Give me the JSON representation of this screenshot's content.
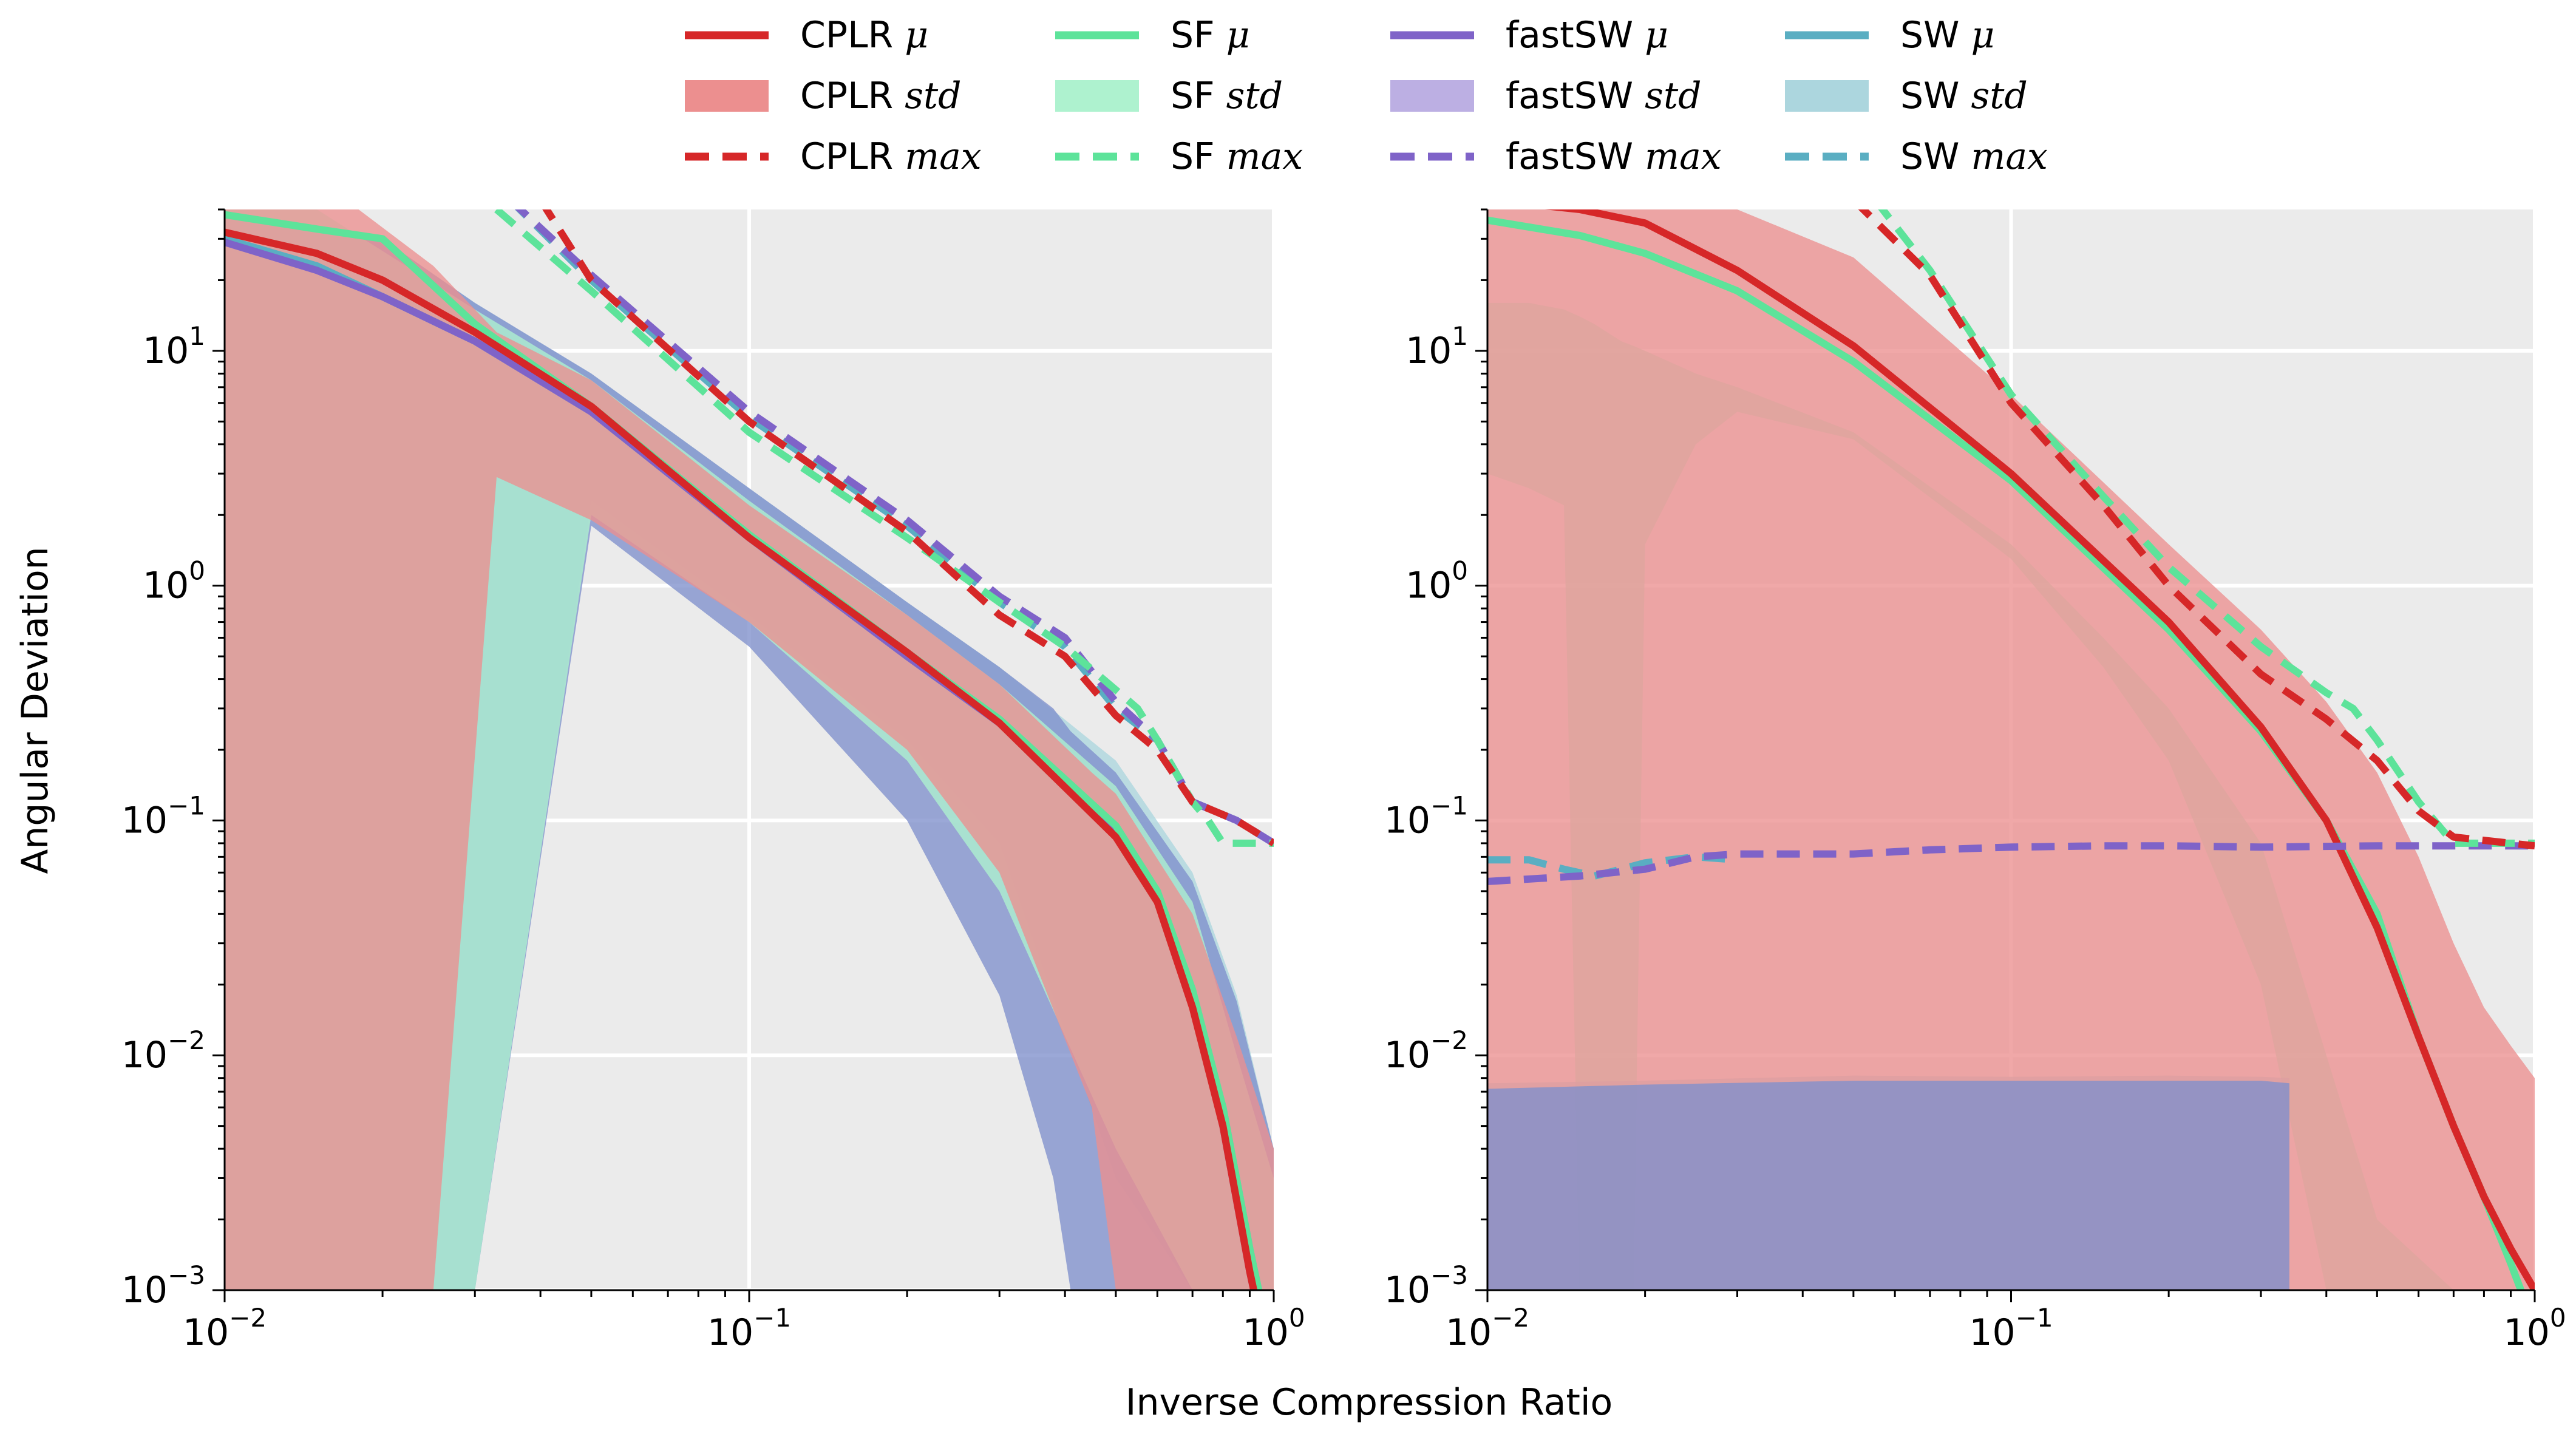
{
  "figure": {
    "ylabel": "Angular Deviation",
    "xlabel": "Inverse Compression Ratio"
  },
  "legend": {
    "position": "top-center",
    "entries": [
      {
        "method": "CPLR",
        "stat": "μ",
        "style": "line",
        "color": "#d62728"
      },
      {
        "method": "CPLR",
        "stat": "std",
        "style": "band",
        "color": "#ec8f8f"
      },
      {
        "method": "CPLR",
        "stat": "max",
        "style": "dashed",
        "color": "#d62728"
      },
      {
        "method": "SF",
        "stat": "μ",
        "style": "line",
        "color": "#5de39a"
      },
      {
        "method": "SF",
        "stat": "std",
        "style": "band",
        "color": "#aef2cf"
      },
      {
        "method": "SF",
        "stat": "max",
        "style": "dashed",
        "color": "#5de39a"
      },
      {
        "method": "fastSW",
        "stat": "μ",
        "style": "line",
        "color": "#7f63c8"
      },
      {
        "method": "fastSW",
        "stat": "std",
        "style": "band",
        "color": "#bcafe3"
      },
      {
        "method": "fastSW",
        "stat": "max",
        "style": "dashed",
        "color": "#7f63c8"
      },
      {
        "method": "SW",
        "stat": "μ",
        "style": "line",
        "color": "#5aaec2"
      },
      {
        "method": "SW",
        "stat": "std",
        "style": "band",
        "color": "#acd6de"
      },
      {
        "method": "SW",
        "stat": "max",
        "style": "dashed",
        "color": "#5aaec2"
      }
    ]
  },
  "chart_data": [
    {
      "type": "line",
      "panel": "left",
      "xscale": "log",
      "yscale": "log",
      "xlim": [
        0.01,
        1
      ],
      "ylim": [
        0.001,
        40
      ],
      "xticks": [
        {
          "value": 0.01,
          "base": "10",
          "exp": "−2"
        },
        {
          "value": 0.1,
          "base": "10",
          "exp": "−1"
        },
        {
          "value": 1,
          "base": "10",
          "exp": "0"
        }
      ],
      "yticks": [
        {
          "value": 0.001,
          "base": "10",
          "exp": "−3"
        },
        {
          "value": 0.01,
          "base": "10",
          "exp": "−2"
        },
        {
          "value": 0.1,
          "base": "10",
          "exp": "−1"
        },
        {
          "value": 1,
          "base": "10",
          "exp": "0"
        },
        {
          "value": 10,
          "base": "10",
          "exp": "1"
        }
      ],
      "grid": true,
      "series": [
        {
          "name": "SW std",
          "kind": "band",
          "color": "#acd6de",
          "x": [
            0.01,
            0.02,
            0.03,
            0.05,
            0.1,
            0.2,
            0.3,
            0.5,
            0.7,
            0.85,
            1.0
          ],
          "upper": [
            38,
            30,
            16,
            8,
            2.6,
            0.85,
            0.45,
            0.18,
            0.06,
            0.018,
            0.004
          ],
          "lower": [
            0.001,
            0.001,
            0.001,
            2.3,
            0.75,
            0.22,
            0.08,
            0.003,
            0.001,
            0.001,
            0.001
          ]
        },
        {
          "name": "fastSW std",
          "kind": "band",
          "color": "#7f8fcc",
          "x": [
            0.01,
            0.02,
            0.03,
            0.05,
            0.1,
            0.2,
            0.3,
            0.38,
            0.41,
            0.5,
            0.7,
            0.85,
            1.0
          ],
          "upper": [
            38,
            30,
            16,
            8,
            2.6,
            0.85,
            0.45,
            0.3,
            0.24,
            0.16,
            0.055,
            0.017,
            0.004
          ],
          "lower": [
            0.001,
            0.001,
            0.001,
            1.8,
            0.55,
            0.1,
            0.018,
            0.003,
            0.001,
            0.001,
            0.001,
            0.001,
            0.001
          ]
        },
        {
          "name": "SF std",
          "kind": "band",
          "color": "#aef2cf",
          "x": [
            0.01,
            0.015,
            0.03,
            0.05,
            0.1,
            0.2,
            0.3,
            0.5,
            0.7,
            0.85,
            1.0
          ],
          "upper": [
            40,
            40,
            15,
            7.5,
            2.3,
            0.75,
            0.38,
            0.14,
            0.045,
            0.01,
            0.003
          ],
          "lower": [
            0.001,
            0.001,
            0.001,
            2.0,
            0.7,
            0.18,
            0.05,
            0.004,
            0.001,
            0.001,
            0.001
          ]
        },
        {
          "name": "CPLR std",
          "kind": "band",
          "color": "#ec8f8f",
          "x": [
            0.01,
            0.015,
            0.018,
            0.025,
            0.033,
            0.05,
            0.1,
            0.2,
            0.3,
            0.45,
            0.5,
            0.7,
            0.85,
            1.0
          ],
          "upper": [
            40,
            40,
            40,
            23,
            12,
            7.5,
            2.2,
            0.75,
            0.38,
            0.16,
            0.13,
            0.04,
            0.012,
            0.004
          ],
          "lower": [
            0.001,
            0.001,
            0.001,
            0.001,
            2.9,
            1.9,
            0.7,
            0.2,
            0.06,
            0.006,
            0.001,
            0.001,
            0.001,
            0.001
          ]
        },
        {
          "name": "SW μ",
          "kind": "line",
          "color": "#5aaec2",
          "x": [
            0.01,
            0.015,
            0.02,
            0.03,
            0.05,
            0.1,
            0.2,
            0.3,
            0.5,
            0.6,
            0.7,
            0.8,
            0.9,
            1.0
          ],
          "y": [
            30,
            23,
            17,
            11,
            5.5,
            1.6,
            0.5,
            0.26,
            0.09,
            0.048,
            0.018,
            0.006,
            0.0015,
            0.0005
          ]
        },
        {
          "name": "fastSW μ",
          "kind": "line",
          "color": "#7f63c8",
          "x": [
            0.01,
            0.015,
            0.02,
            0.03,
            0.05,
            0.1,
            0.2,
            0.3,
            0.5,
            0.6,
            0.7,
            0.8,
            0.9,
            1.0
          ],
          "y": [
            29,
            22,
            17,
            11,
            5.5,
            1.6,
            0.5,
            0.26,
            0.09,
            0.048,
            0.017,
            0.005,
            0.0012,
            0.0004
          ]
        },
        {
          "name": "SF μ",
          "kind": "line",
          "color": "#5de39a",
          "x": [
            0.01,
            0.015,
            0.02,
            0.03,
            0.05,
            0.1,
            0.2,
            0.3,
            0.5,
            0.6,
            0.7,
            0.8,
            0.9,
            1.0
          ],
          "y": [
            38,
            33,
            30,
            13,
            5.8,
            1.65,
            0.52,
            0.27,
            0.095,
            0.05,
            0.019,
            0.006,
            0.0015,
            0.0005
          ]
        },
        {
          "name": "CPLR μ",
          "kind": "line",
          "color": "#d62728",
          "x": [
            0.01,
            0.015,
            0.02,
            0.03,
            0.05,
            0.1,
            0.2,
            0.3,
            0.5,
            0.6,
            0.7,
            0.8,
            0.9,
            1.0
          ],
          "y": [
            32,
            26,
            20,
            12,
            5.8,
            1.6,
            0.52,
            0.26,
            0.085,
            0.045,
            0.016,
            0.005,
            0.0012,
            0.0004
          ]
        },
        {
          "name": "SW max",
          "kind": "dashed",
          "color": "#5aaec2",
          "x": [
            0.035,
            0.05,
            0.1,
            0.2,
            0.3,
            0.4,
            0.5,
            0.6,
            0.7,
            0.85,
            1.0
          ],
          "y": [
            44,
            20,
            5.2,
            1.8,
            0.85,
            0.55,
            0.3,
            0.22,
            0.12,
            0.1,
            0.08
          ]
        },
        {
          "name": "fastSW max",
          "kind": "dashed",
          "color": "#7f63c8",
          "x": [
            0.035,
            0.05,
            0.1,
            0.2,
            0.3,
            0.4,
            0.5,
            0.6,
            0.7,
            0.85,
            1.0
          ],
          "y": [
            44,
            21,
            5.5,
            1.9,
            0.9,
            0.6,
            0.32,
            0.22,
            0.12,
            0.1,
            0.08
          ]
        },
        {
          "name": "SF max",
          "kind": "dashed",
          "color": "#5de39a",
          "x": [
            0.033,
            0.05,
            0.1,
            0.2,
            0.3,
            0.4,
            0.5,
            0.55,
            0.6,
            0.7,
            0.75,
            0.8,
            1.0
          ],
          "y": [
            40,
            18,
            4.5,
            1.6,
            0.85,
            0.55,
            0.36,
            0.3,
            0.22,
            0.12,
            0.1,
            0.08,
            0.08
          ]
        },
        {
          "name": "CPLR max",
          "kind": "dashed",
          "color": "#d62728",
          "x": [
            0.04,
            0.05,
            0.1,
            0.2,
            0.3,
            0.4,
            0.5,
            0.6,
            0.7,
            0.85,
            1.0
          ],
          "y": [
            44,
            20,
            5.0,
            1.7,
            0.75,
            0.5,
            0.28,
            0.2,
            0.12,
            0.1,
            0.08
          ]
        }
      ]
    },
    {
      "type": "line",
      "panel": "right",
      "xscale": "log",
      "yscale": "log",
      "xlim": [
        0.01,
        1
      ],
      "ylim": [
        0.001,
        40
      ],
      "xticks": [
        {
          "value": 0.01,
          "base": "10",
          "exp": "−2"
        },
        {
          "value": 0.1,
          "base": "10",
          "exp": "−1"
        },
        {
          "value": 1,
          "base": "10",
          "exp": "0"
        }
      ],
      "yticks": [
        {
          "value": 0.001,
          "base": "10",
          "exp": "−3"
        },
        {
          "value": 0.01,
          "base": "10",
          "exp": "−2"
        },
        {
          "value": 0.1,
          "base": "10",
          "exp": "−1"
        },
        {
          "value": 1,
          "base": "10",
          "exp": "0"
        },
        {
          "value": 10,
          "base": "10",
          "exp": "1"
        }
      ],
      "grid": true,
      "series": [
        {
          "name": "SF std",
          "kind": "band",
          "color": "#aef2cf",
          "x": [
            0.01,
            0.012,
            0.014,
            0.015,
            0.016,
            0.018,
            0.019,
            0.02,
            0.025,
            0.03,
            0.05,
            0.1,
            0.15,
            0.2,
            0.3,
            0.4,
            0.5,
            0.7,
            1.0
          ],
          "upper": [
            16,
            16,
            15,
            14,
            13,
            11,
            10.5,
            10,
            8,
            7,
            4.5,
            1.5,
            0.6,
            0.3,
            0.08,
            0.01,
            0.002,
            0.001,
            0.001
          ],
          "lower": [
            3,
            2.6,
            2.2,
            0.001,
            0.001,
            0.001,
            0.001,
            1.5,
            4,
            5.5,
            4.2,
            1.3,
            0.45,
            0.18,
            0.02,
            0.001,
            0.001,
            0.001,
            0.001
          ]
        },
        {
          "name": "SW std",
          "kind": "band",
          "color": "#acd6de",
          "x": [
            0.01,
            0.02,
            0.05,
            0.1,
            0.2,
            0.3,
            0.34
          ],
          "upper": [
            0.0076,
            0.0078,
            0.0082,
            0.0081,
            0.0082,
            0.0081,
            0.008
          ],
          "lower": [
            0.001,
            0.001,
            0.001,
            0.001,
            0.001,
            0.001,
            0.001
          ]
        },
        {
          "name": "CPLR std",
          "kind": "band",
          "color": "#ec8f8f",
          "x": [
            0.01,
            0.02,
            0.03,
            0.05,
            0.1,
            0.2,
            0.3,
            0.4,
            0.5,
            0.6,
            0.7,
            0.8,
            0.9,
            1.0
          ],
          "upper": [
            40,
            40,
            40,
            25,
            6.5,
            1.5,
            0.65,
            0.32,
            0.16,
            0.07,
            0.03,
            0.016,
            0.011,
            0.008
          ],
          "lower": [
            0.001,
            0.001,
            0.001,
            0.001,
            0.001,
            0.001,
            0.001,
            0.001,
            0.001,
            0.001,
            0.001,
            0.001,
            0.001,
            0.001
          ]
        },
        {
          "name": "fastSW std",
          "kind": "band",
          "color": "#7f8fcc",
          "x": [
            0.01,
            0.02,
            0.05,
            0.1,
            0.2,
            0.3,
            0.34
          ],
          "upper": [
            0.0072,
            0.0075,
            0.0078,
            0.0078,
            0.0078,
            0.0078,
            0.0076
          ],
          "lower": [
            0.001,
            0.001,
            0.001,
            0.001,
            0.001,
            0.001,
            0.001
          ]
        },
        {
          "name": "SF μ",
          "kind": "line",
          "color": "#5de39a",
          "x": [
            0.01,
            0.015,
            0.02,
            0.03,
            0.05,
            0.1,
            0.2,
            0.3,
            0.4,
            0.5,
            0.6,
            0.7,
            0.8,
            0.9,
            1.0
          ],
          "y": [
            36,
            31,
            26,
            18,
            9,
            2.8,
            0.65,
            0.24,
            0.1,
            0.04,
            0.012,
            0.005,
            0.0025,
            0.0013,
            0.0007
          ]
        },
        {
          "name": "CPLR μ",
          "kind": "line",
          "color": "#d62728",
          "x": [
            0.01,
            0.015,
            0.02,
            0.03,
            0.05,
            0.1,
            0.2,
            0.3,
            0.4,
            0.5,
            0.6,
            0.7,
            0.8,
            0.9,
            1.0
          ],
          "y": [
            44,
            40,
            35,
            22,
            10.5,
            3.0,
            0.7,
            0.25,
            0.1,
            0.035,
            0.012,
            0.005,
            0.0025,
            0.0015,
            0.001
          ]
        },
        {
          "name": "SW max",
          "kind": "dashed",
          "color": "#5aaec2",
          "x": [
            0.01,
            0.012,
            0.014,
            0.016,
            0.018,
            0.02,
            0.025,
            0.03
          ],
          "y": [
            0.068,
            0.068,
            0.062,
            0.058,
            0.062,
            0.066,
            0.07,
            0.068
          ]
        },
        {
          "name": "fastSW max",
          "kind": "dashed",
          "color": "#7f63c8",
          "x": [
            0.01,
            0.015,
            0.02,
            0.025,
            0.03,
            0.05,
            0.07,
            0.1,
            0.15,
            0.2,
            0.3,
            0.5,
            0.7,
            1.0
          ],
          "y": [
            0.055,
            0.058,
            0.062,
            0.07,
            0.072,
            0.072,
            0.075,
            0.077,
            0.078,
            0.078,
            0.077,
            0.078,
            0.078,
            0.078
          ]
        },
        {
          "name": "SF max",
          "kind": "dashed",
          "color": "#5de39a",
          "x": [
            0.055,
            0.07,
            0.1,
            0.15,
            0.2,
            0.3,
            0.4,
            0.45,
            0.5,
            0.6,
            0.7,
            1.0
          ],
          "y": [
            44,
            22,
            6.5,
            2.4,
            1.2,
            0.55,
            0.35,
            0.3,
            0.22,
            0.12,
            0.08,
            0.08
          ]
        },
        {
          "name": "CPLR max",
          "kind": "dashed",
          "color": "#d62728",
          "x": [
            0.05,
            0.07,
            0.1,
            0.15,
            0.2,
            0.3,
            0.4,
            0.5,
            0.6,
            0.7,
            1.0
          ],
          "y": [
            44,
            21,
            6.0,
            2.2,
            1.0,
            0.42,
            0.27,
            0.18,
            0.11,
            0.085,
            0.078
          ]
        }
      ]
    }
  ]
}
